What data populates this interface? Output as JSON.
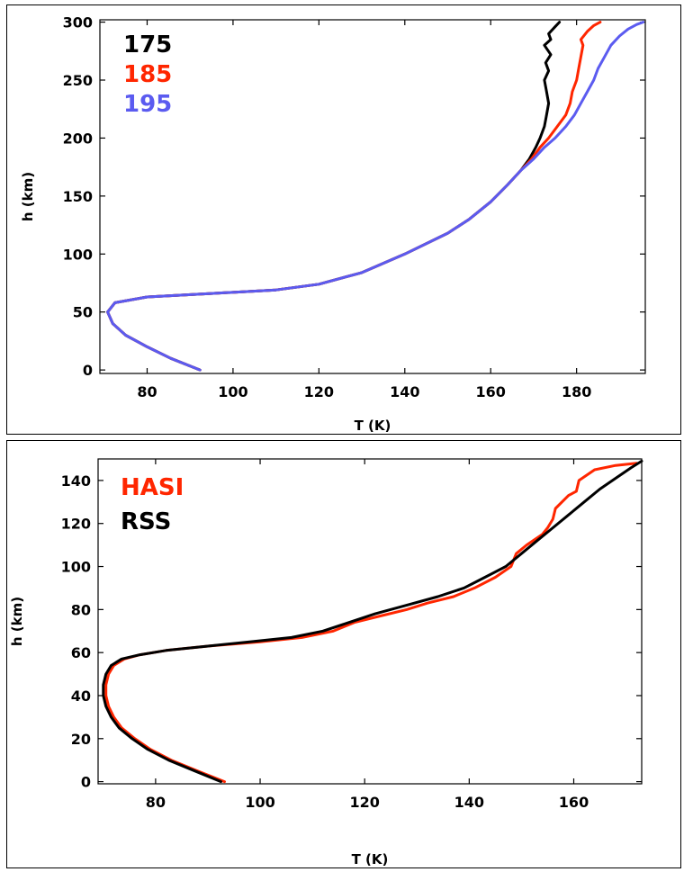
{
  "chart_data": [
    {
      "type": "line",
      "title": "",
      "xlabel": "T (K)",
      "ylabel": "h (km)",
      "xlim": [
        69,
        196
      ],
      "ylim": [
        -3,
        302
      ],
      "xticks": [
        80,
        100,
        120,
        140,
        160,
        180
      ],
      "yticks": [
        0,
        50,
        100,
        150,
        200,
        250,
        300
      ],
      "grid": false,
      "legend": "top-left",
      "series": [
        {
          "name": "175",
          "color": "#000000",
          "points": [
            [
              92.3,
              0
            ],
            [
              85.5,
              10
            ],
            [
              80,
              20
            ],
            [
              75,
              30
            ],
            [
              72,
              40
            ],
            [
              70.8,
              50
            ],
            [
              72.5,
              58
            ],
            [
              80,
              63
            ],
            [
              95,
              66
            ],
            [
              110,
              69
            ],
            [
              120,
              74
            ],
            [
              130,
              84
            ],
            [
              140,
              100
            ],
            [
              150,
              118
            ],
            [
              155,
              130
            ],
            [
              160,
              145
            ],
            [
              164,
              160
            ],
            [
              167,
              172
            ],
            [
              169,
              182
            ],
            [
              170.5,
              192
            ],
            [
              171.5,
              200
            ],
            [
              172.5,
              210
            ],
            [
              173,
              220
            ],
            [
              173.5,
              230
            ],
            [
              173,
              240
            ],
            [
              172.5,
              250
            ],
            [
              173.5,
              258
            ],
            [
              172.8,
              265
            ],
            [
              174,
              272
            ],
            [
              172.5,
              280
            ],
            [
              174,
              285
            ],
            [
              173.5,
              290
            ],
            [
              175,
              296
            ],
            [
              176,
              300
            ]
          ]
        },
        {
          "name": "185",
          "color": "#ff2600",
          "points": [
            [
              92.3,
              0
            ],
            [
              85.5,
              10
            ],
            [
              80,
              20
            ],
            [
              75,
              30
            ],
            [
              72,
              40
            ],
            [
              70.8,
              50
            ],
            [
              72.5,
              58
            ],
            [
              80,
              63
            ],
            [
              95,
              66
            ],
            [
              110,
              69
            ],
            [
              120,
              74
            ],
            [
              130,
              84
            ],
            [
              140,
              100
            ],
            [
              150,
              118
            ],
            [
              155,
              130
            ],
            [
              160,
              145
            ],
            [
              164,
              160
            ],
            [
              167,
              172
            ],
            [
              169.5,
              182
            ],
            [
              171.5,
              192
            ],
            [
              173.5,
              200
            ],
            [
              175.5,
              210
            ],
            [
              177.5,
              220
            ],
            [
              178.5,
              230
            ],
            [
              179,
              240
            ],
            [
              180,
              250
            ],
            [
              180.5,
              260
            ],
            [
              181,
              270
            ],
            [
              181.5,
              280
            ],
            [
              181,
              285
            ],
            [
              182.5,
              292
            ],
            [
              184,
              297
            ],
            [
              185.5,
              300
            ]
          ]
        },
        {
          "name": "195",
          "color": "#5b5bf0",
          "points": [
            [
              92.3,
              0
            ],
            [
              85.5,
              10
            ],
            [
              80,
              20
            ],
            [
              75,
              30
            ],
            [
              72,
              40
            ],
            [
              70.8,
              50
            ],
            [
              72.5,
              58
            ],
            [
              80,
              63
            ],
            [
              95,
              66
            ],
            [
              110,
              69
            ],
            [
              120,
              74
            ],
            [
              130,
              84
            ],
            [
              140,
              100
            ],
            [
              150,
              118
            ],
            [
              155,
              130
            ],
            [
              160,
              145
            ],
            [
              164,
              160
            ],
            [
              167,
              172
            ],
            [
              170,
              182
            ],
            [
              172.5,
              192
            ],
            [
              175,
              200
            ],
            [
              177.5,
              210
            ],
            [
              179.5,
              220
            ],
            [
              181,
              230
            ],
            [
              182.5,
              240
            ],
            [
              184,
              250
            ],
            [
              185,
              260
            ],
            [
              186.5,
              270
            ],
            [
              188,
              280
            ],
            [
              190,
              288
            ],
            [
              192,
              294
            ],
            [
              194,
              298
            ],
            [
              195.5,
              300
            ]
          ]
        }
      ]
    },
    {
      "type": "line",
      "title": "",
      "xlabel": "T (K)",
      "ylabel": "h (km)",
      "xlim": [
        69,
        173
      ],
      "ylim": [
        -1,
        150
      ],
      "xticks": [
        80,
        100,
        120,
        140,
        160
      ],
      "yticks": [
        0,
        20,
        40,
        60,
        80,
        100,
        120,
        140
      ],
      "grid": false,
      "legend": "top-left",
      "series": [
        {
          "name": "HASI",
          "color": "#ff2600",
          "points": [
            [
              93.2,
              0
            ],
            [
              88,
              5
            ],
            [
              83,
              10
            ],
            [
              79,
              15
            ],
            [
              76,
              20
            ],
            [
              73.5,
              25
            ],
            [
              72,
              30
            ],
            [
              71,
              35
            ],
            [
              70.5,
              40
            ],
            [
              70.5,
              45
            ],
            [
              71,
              50
            ],
            [
              72,
              54
            ],
            [
              74,
              57
            ],
            [
              77,
              59
            ],
            [
              82,
              61
            ],
            [
              90,
              63
            ],
            [
              100,
              65
            ],
            [
              108,
              67
            ],
            [
              114,
              70
            ],
            [
              118,
              74
            ],
            [
              123,
              77
            ],
            [
              128,
              80
            ],
            [
              132,
              83
            ],
            [
              137,
              86
            ],
            [
              141,
              90
            ],
            [
              145,
              95
            ],
            [
              148,
              100
            ],
            [
              149,
              106
            ],
            [
              151,
              110
            ],
            [
              154,
              115
            ],
            [
              155,
              118
            ],
            [
              156,
              122
            ],
            [
              156.5,
              127
            ],
            [
              159,
              133
            ],
            [
              160.5,
              135
            ],
            [
              161,
              140
            ],
            [
              164,
              145
            ],
            [
              168,
              147
            ],
            [
              172,
              148
            ]
          ]
        },
        {
          "name": "RSS",
          "color": "#000000",
          "points": [
            [
              92.5,
              0
            ],
            [
              87.5,
              5
            ],
            [
              82.5,
              10
            ],
            [
              78.5,
              15
            ],
            [
              75.5,
              20
            ],
            [
              73,
              25
            ],
            [
              71.5,
              30
            ],
            [
              70.5,
              35
            ],
            [
              70,
              40
            ],
            [
              70,
              45
            ],
            [
              70.5,
              50
            ],
            [
              71.5,
              54
            ],
            [
              73.5,
              57
            ],
            [
              77,
              59
            ],
            [
              82,
              61
            ],
            [
              90,
              63
            ],
            [
              98,
              65
            ],
            [
              106,
              67
            ],
            [
              112,
              70
            ],
            [
              117,
              74
            ],
            [
              122,
              78
            ],
            [
              128,
              82
            ],
            [
              134,
              86
            ],
            [
              139,
              90
            ],
            [
              143,
              95
            ],
            [
              147,
              100
            ],
            [
              150,
              106
            ],
            [
              153,
              112
            ],
            [
              156,
              118
            ],
            [
              159,
              124
            ],
            [
              162,
              130
            ],
            [
              165,
              136
            ],
            [
              168,
              141
            ],
            [
              171,
              146
            ],
            [
              173,
              149
            ]
          ]
        }
      ]
    }
  ]
}
